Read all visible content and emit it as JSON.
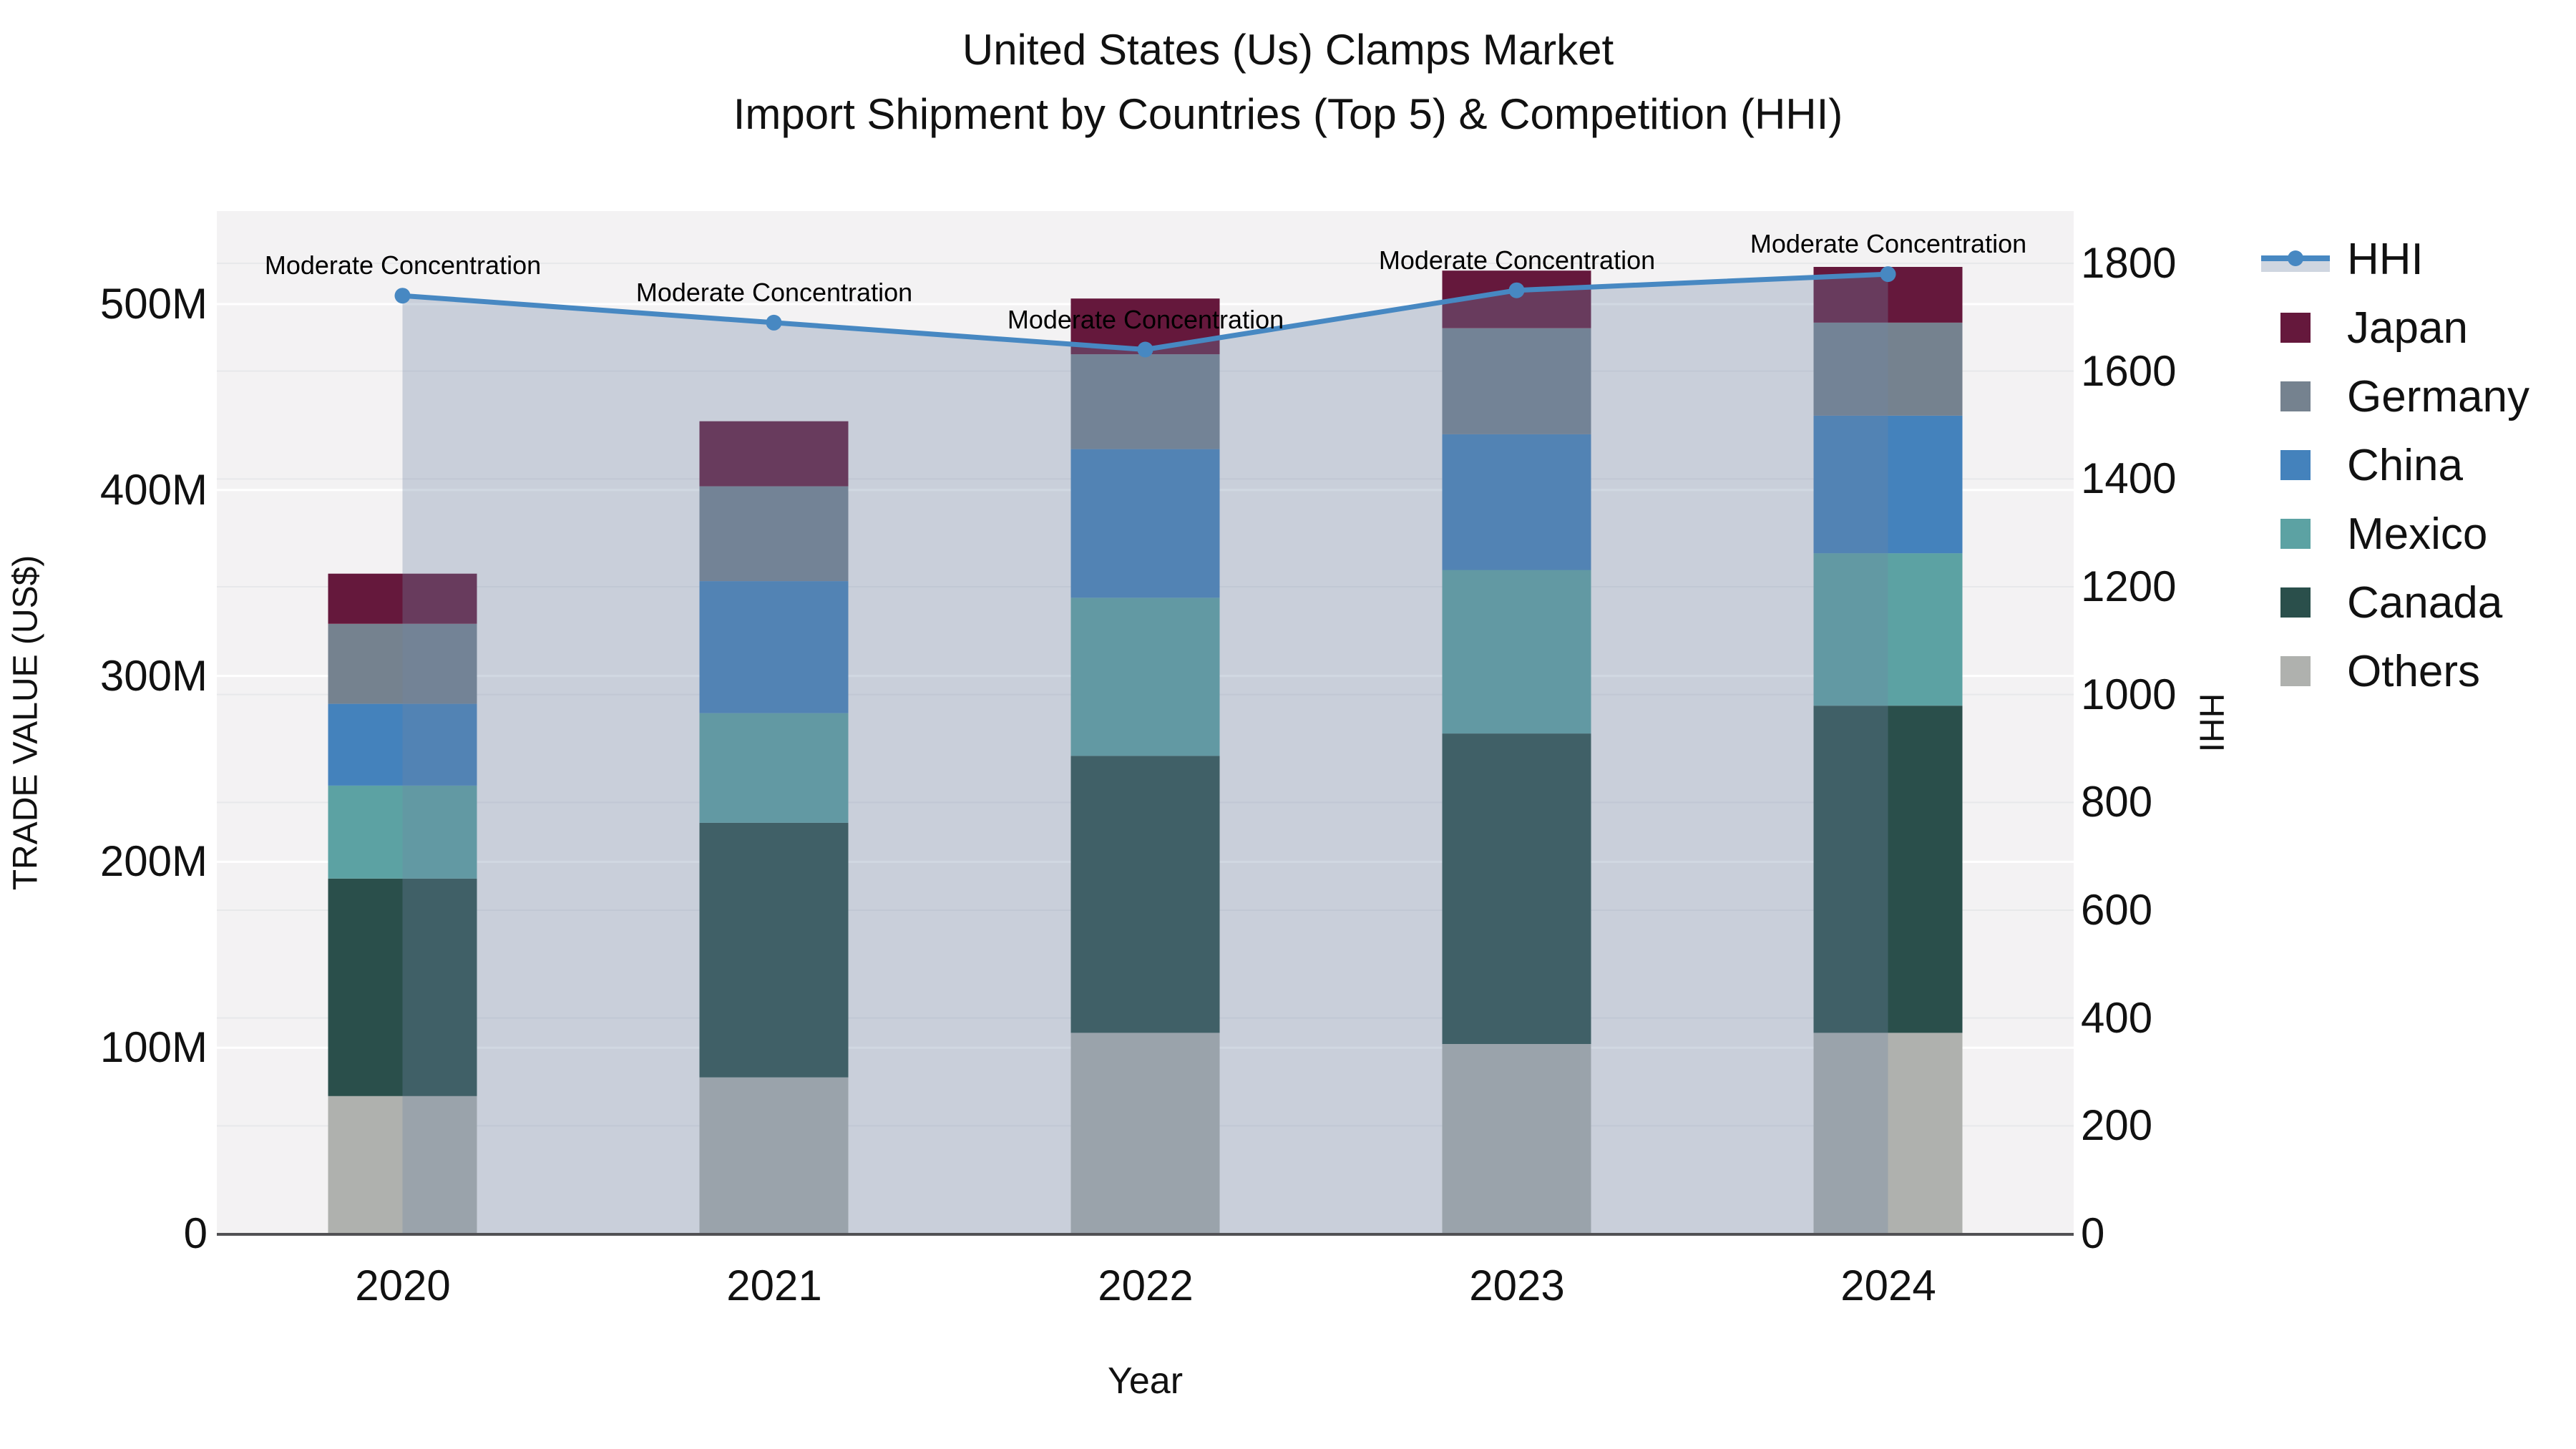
{
  "chart_data": {
    "type": "combo-stacked-bar-line",
    "title": "United States (Us) Clamps Market",
    "subtitle": "Import Shipment by Countries (Top 5) & Competition (HHI)",
    "xlabel": "Year",
    "ylabel_left": "TRADE VALUE (US$)",
    "ylabel_right": "HHI",
    "categories": [
      "2020",
      "2021",
      "2022",
      "2023",
      "2024"
    ],
    "bar_value_unit": "millions of US$",
    "bar_series": [
      {
        "name": "Japan",
        "color": "#65183C",
        "values": [
          27,
          35,
          30,
          31,
          30
        ]
      },
      {
        "name": "Germany",
        "color": "#75828F",
        "values": [
          43,
          51,
          51,
          57,
          50
        ]
      },
      {
        "name": "China",
        "color": "#4482BC",
        "values": [
          44,
          71,
          80,
          73,
          74
        ]
      },
      {
        "name": "Mexico",
        "color": "#5CA2A3",
        "values": [
          50,
          59,
          85,
          88,
          82
        ]
      },
      {
        "name": "Canada",
        "color": "#2A4F4B",
        "values": [
          117,
          137,
          149,
          167,
          176
        ]
      },
      {
        "name": "Others",
        "color": "#AFB1AE",
        "values": [
          74,
          84,
          108,
          102,
          108
        ]
      }
    ],
    "stack_order_bottom_to_top": [
      "Others",
      "Canada",
      "Mexico",
      "China",
      "Germany",
      "Japan"
    ],
    "bar_totals": [
      355,
      437,
      503,
      518,
      520
    ],
    "line_series": {
      "name": "HHI",
      "axis": "right",
      "color": "#4788C2",
      "area_fill": "rgba(113,134,166,0.32)",
      "values": [
        1740,
        1690,
        1640,
        1750,
        1780
      ]
    },
    "point_annotations": [
      "Moderate Concentration",
      "Moderate Concentration",
      "Moderate Concentration",
      "Moderate Concentration",
      "Moderate Concentration"
    ],
    "y_left": {
      "tick_labels": [
        "0",
        "100M",
        "200M",
        "300M",
        "400M",
        "500M"
      ],
      "tick_values": [
        0,
        100,
        200,
        300,
        400,
        500
      ],
      "range": [
        0,
        550
      ]
    },
    "y_right": {
      "tick_labels": [
        "0",
        "200",
        "400",
        "600",
        "800",
        "1000",
        "1200",
        "1400",
        "1600",
        "1800"
      ],
      "tick_values": [
        0,
        200,
        400,
        600,
        800,
        1000,
        1200,
        1400,
        1600,
        1800
      ],
      "range": [
        0,
        1897
      ]
    },
    "legend_order": [
      "HHI",
      "Japan",
      "Germany",
      "China",
      "Mexico",
      "Canada",
      "Others"
    ],
    "legend_position": "right",
    "grid": true,
    "colors": {
      "plot_background": "#F3F2F3",
      "figure_background": "#FFFFFF",
      "major_gridline": "#FFFFFF",
      "minor_gridline": "#E7E8EA",
      "axis_line": "#515154",
      "text": "#111111",
      "legend_hhi_band": "#CFD6E0"
    }
  }
}
